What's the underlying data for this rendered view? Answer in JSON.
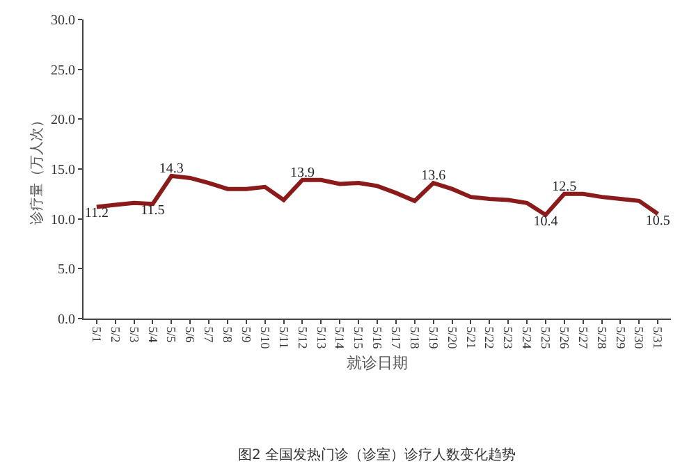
{
  "chart_data": {
    "type": "line",
    "xlabel": "就诊日期",
    "ylabel": "诊疗量（万人次）",
    "categories": [
      "5/1",
      "5/2",
      "5/3",
      "5/4",
      "5/5",
      "5/6",
      "5/7",
      "5/8",
      "5/9",
      "5/10",
      "5/11",
      "5/12",
      "5/13",
      "5/14",
      "5/15",
      "5/16",
      "5/17",
      "5/18",
      "5/19",
      "5/20",
      "5/21",
      "5/22",
      "5/23",
      "5/24",
      "5/25",
      "5/26",
      "5/27",
      "5/28",
      "5/29",
      "5/30",
      "5/31"
    ],
    "series": [
      {
        "color": "#8b1a1a",
        "values": [
          11.2,
          11.4,
          11.6,
          11.5,
          14.3,
          14.1,
          13.6,
          13.0,
          13.0,
          13.2,
          11.9,
          13.9,
          13.9,
          13.5,
          13.6,
          13.3,
          12.6,
          11.8,
          13.6,
          13.0,
          12.2,
          12.0,
          11.9,
          11.6,
          10.4,
          12.5,
          12.5,
          12.2,
          12.0,
          11.8,
          10.5
        ],
        "value_labels": [
          "11.2",
          null,
          null,
          "11.5",
          "14.3",
          null,
          null,
          null,
          null,
          null,
          null,
          "13.9",
          null,
          null,
          null,
          null,
          null,
          null,
          "13.6",
          null,
          null,
          null,
          null,
          null,
          "10.4",
          "12.5",
          null,
          null,
          null,
          null,
          "10.5"
        ]
      }
    ],
    "ylim": [
      0,
      30
    ],
    "yticks": [
      {
        "value": 0,
        "label": "0.0"
      },
      {
        "value": 5,
        "label": "5.0"
      },
      {
        "value": 10,
        "label": "10.0"
      },
      {
        "value": 15,
        "label": "15.0"
      },
      {
        "value": 20,
        "label": "20.0"
      },
      {
        "value": 25,
        "label": "25.0"
      },
      {
        "value": 30,
        "label": "30.0"
      }
    ],
    "grid": false,
    "legend": false,
    "marker": "none",
    "line_style": "solid",
    "annotations": [
      "图2 全国发热门诊（诊室）诊疗人数变化趋势"
    ]
  }
}
